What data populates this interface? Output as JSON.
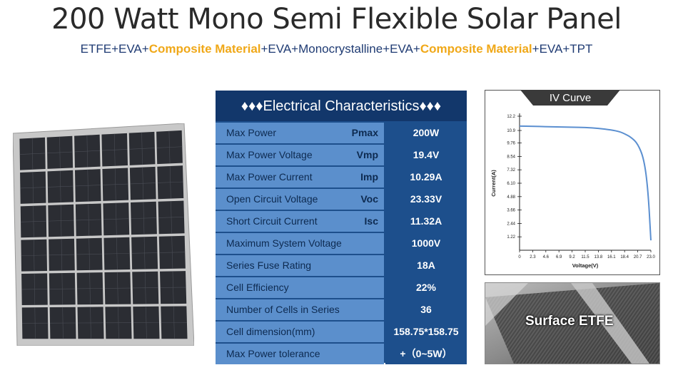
{
  "title": "200 Watt Mono Semi Flexible Solar Panel",
  "subtitle": {
    "parts": [
      {
        "text": "ETFE+EVA+",
        "highlight": false
      },
      {
        "text": "Composite Material",
        "highlight": true
      },
      {
        "text": "+EVA+Monocrystalline+EVA+",
        "highlight": false
      },
      {
        "text": "Composite Material",
        "highlight": true
      },
      {
        "text": "+EVA+TPT",
        "highlight": false
      }
    ]
  },
  "table": {
    "heading": "♦♦♦Electrical Characteristics♦♦♦",
    "rows": [
      {
        "label": "Max Power",
        "symbol": "Pmax",
        "value": "200W"
      },
      {
        "label": "Max Power Voltage",
        "symbol": "Vmp",
        "value": "19.4V"
      },
      {
        "label": "Max Power Current",
        "symbol": "Imp",
        "value": "10.29A"
      },
      {
        "label": "Open Circuit Voltage",
        "symbol": "Voc",
        "value": "23.33V"
      },
      {
        "label": "Short Circuit Current",
        "symbol": "Isc",
        "value": "11.32A"
      },
      {
        "label": "Maximum System Voltage",
        "symbol": "",
        "value": "1000V"
      },
      {
        "label": "Series Fuse Rating",
        "symbol": "",
        "value": "18A"
      },
      {
        "label": "Cell Efficiency",
        "symbol": "",
        "value": "22%"
      },
      {
        "label": "Number of Cells in Series",
        "symbol": "",
        "value": "36"
      },
      {
        "label": "Cell dimension(mm)",
        "symbol": "",
        "value": "158.75*158.75"
      },
      {
        "label": "Max Power tolerance",
        "symbol": "",
        "value": "+（0~5W）"
      }
    ]
  },
  "chart_data": {
    "type": "line",
    "title": "IV Curve",
    "xlabel": "Voltage(V)",
    "ylabel": "Current(A)",
    "x_ticks": [
      "0",
      "2.3",
      "4.6",
      "6.9",
      "9.2",
      "11.5",
      "13.8",
      "16.1",
      "18.4",
      "20.7",
      "23.0"
    ],
    "y_ticks": [
      "1.22",
      "2.44",
      "3.66",
      "4.88",
      "6.10",
      "7.32",
      "8.54",
      "9.76",
      "10.9",
      "12.2"
    ],
    "xlim": [
      0,
      23.0
    ],
    "ylim": [
      0,
      12.2
    ],
    "series": [
      {
        "x": [
          0,
          2.3,
          4.6,
          6.9,
          9.2,
          11.5,
          13.8,
          16.1,
          17.5,
          18.4,
          19.5,
          20.7,
          21.8,
          22.5,
          23.0
        ],
        "y": [
          11.3,
          11.28,
          11.25,
          11.22,
          11.2,
          11.17,
          11.1,
          10.95,
          10.8,
          10.6,
          10.3,
          9.7,
          8.3,
          5.5,
          0.9
        ]
      }
    ],
    "line_color": "#5b8fd0"
  },
  "photo": {
    "label": "Surface ETFE"
  }
}
